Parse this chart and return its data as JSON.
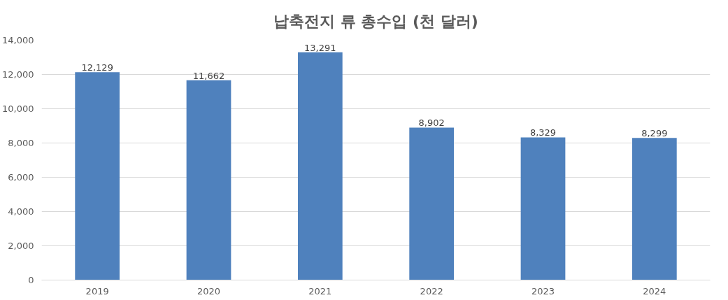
{
  "chart_data": {
    "type": "bar",
    "title": "납축전지 류 총수입 (천 달러)",
    "categories": [
      "2019",
      "2020",
      "2021",
      "2022",
      "2023",
      "2024"
    ],
    "values": [
      12129,
      11662,
      13291,
      8902,
      8329,
      8299
    ],
    "color": "#4f81bd",
    "ylim": [
      0,
      14000
    ],
    "yticks": [
      {
        "value": 0,
        "label": "0"
      },
      {
        "value": 2000,
        "label": "2,000"
      },
      {
        "value": 4000,
        "label": "4,000"
      },
      {
        "value": 6000,
        "label": "6,000"
      },
      {
        "value": 8000,
        "label": "8,000"
      },
      {
        "value": 10000,
        "label": "10,000"
      },
      {
        "value": 12000,
        "label": "12,000"
      },
      {
        "value": 14000,
        "label": "14,000"
      }
    ],
    "grid": "y",
    "value_labels": [
      "12,129",
      "11,662",
      "13,291",
      "8,902",
      "8,329",
      "8,299"
    ]
  }
}
